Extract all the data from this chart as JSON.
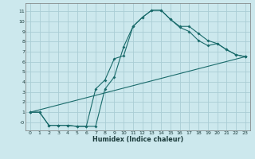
{
  "xlabel": "Humidex (Indice chaleur)",
  "bg_color": "#cce8ed",
  "grid_color": "#aacdd5",
  "line_color": "#1a6b6b",
  "xlim": [
    -0.5,
    23.5
  ],
  "ylim": [
    -0.8,
    11.8
  ],
  "xtick_vals": [
    0,
    1,
    2,
    3,
    4,
    5,
    6,
    7,
    8,
    9,
    10,
    11,
    12,
    13,
    14,
    15,
    16,
    17,
    18,
    19,
    20,
    21,
    22,
    23
  ],
  "ytick_vals": [
    0,
    1,
    2,
    3,
    4,
    5,
    6,
    7,
    8,
    9,
    10,
    11
  ],
  "ytick_labels": [
    "-0",
    "1",
    "2",
    "3",
    "4",
    "5",
    "6",
    "7",
    "8",
    "9",
    "10",
    "11"
  ],
  "curve1_x": [
    0,
    1,
    2,
    3,
    4,
    5,
    6,
    7,
    8,
    9,
    10,
    11,
    12,
    13,
    14,
    15,
    16,
    17,
    18,
    19,
    20,
    21,
    22,
    23
  ],
  "curve1_y": [
    1,
    1,
    -0.3,
    -0.3,
    -0.3,
    -0.4,
    -0.4,
    -0.4,
    3.3,
    4.5,
    7.5,
    9.5,
    10.4,
    11.1,
    11.1,
    10.2,
    9.5,
    9.5,
    8.8,
    8.1,
    7.8,
    7.2,
    6.7,
    6.5
  ],
  "curve2_x": [
    0,
    1,
    2,
    3,
    4,
    5,
    6,
    7,
    8,
    9,
    10,
    11,
    12,
    13,
    14,
    15,
    16,
    17,
    18,
    19,
    20,
    21,
    22,
    23
  ],
  "curve2_y": [
    1,
    1,
    -0.3,
    -0.3,
    -0.3,
    -0.4,
    -0.4,
    3.3,
    4.2,
    6.3,
    6.6,
    9.5,
    10.4,
    11.1,
    11.1,
    10.2,
    9.4,
    9.0,
    8.1,
    7.6,
    7.8,
    7.2,
    6.7,
    6.5
  ],
  "curve3_x": [
    0,
    23
  ],
  "curve3_y": [
    1,
    6.5
  ]
}
